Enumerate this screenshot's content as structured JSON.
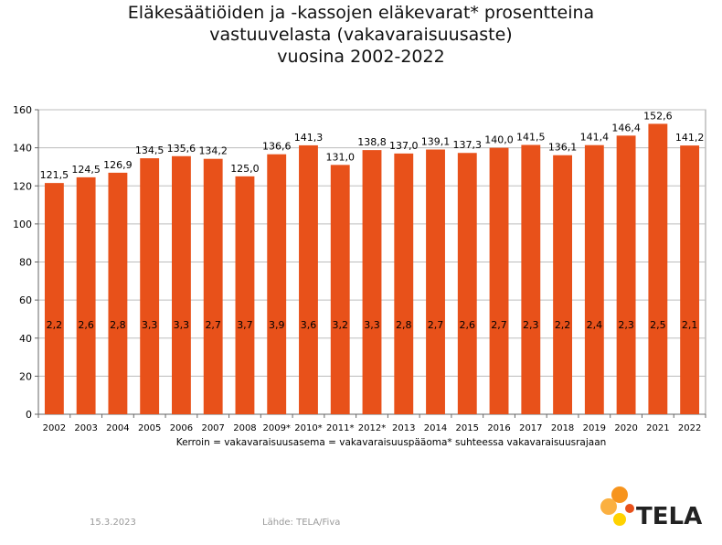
{
  "chart_data": {
    "type": "bar",
    "title_lines": [
      "Eläkesäätiöiden ja -kassojen eläkevarat* prosentteina",
      "vastuuvelasta (vakavaraisuusaste)",
      "vuosina 2002-2022"
    ],
    "categories": [
      "2002",
      "2003",
      "2004",
      "2005",
      "2006",
      "2007",
      "2008",
      "2009*",
      "2010*",
      "2011*",
      "2012*",
      "2013",
      "2014",
      "2015",
      "2016",
      "2017",
      "2018",
      "2019",
      "2020",
      "2021",
      "2022"
    ],
    "values": [
      121.5,
      124.5,
      126.9,
      134.5,
      135.6,
      134.2,
      125.0,
      136.6,
      141.3,
      131.0,
      138.8,
      137.0,
      139.1,
      137.3,
      140.0,
      141.5,
      136.1,
      141.4,
      146.4,
      152.6,
      141.2
    ],
    "value_labels": [
      "121,5",
      "124,5",
      "126,9",
      "134,5",
      "135,6",
      "134,2",
      "125,0",
      "136,6",
      "141,3",
      "131,0",
      "138,8",
      "137,0",
      "139,1",
      "137,3",
      "140,0",
      "141,5",
      "136,1",
      "141,4",
      "146,4",
      "152,6",
      "141,2"
    ],
    "inner_labels": [
      "2,2",
      "2,6",
      "2,8",
      "3,3",
      "3,3",
      "2,7",
      "3,7",
      "3,9",
      "3,6",
      "3,2",
      "3,3",
      "2,8",
      "2,7",
      "2,6",
      "2,7",
      "2,3",
      "2,2",
      "2,4",
      "2,3",
      "2,5",
      "2,1"
    ],
    "ylim": [
      0,
      160
    ],
    "yticks": [
      "0",
      "20",
      "40",
      "60",
      "80",
      "100",
      "120",
      "140",
      "160"
    ],
    "grid": true,
    "bar_color": "#E8511A",
    "subtitle": "Kerroin = vakavaraisuusasema = vakavaraisuuspääoma* suhteessa vakavaraisuusrajaan"
  },
  "footer": {
    "date": "15.3.2023",
    "source": "Lähde: TELA/Fiva"
  },
  "logo": {
    "text": "TELA",
    "colors": [
      "#F7941D",
      "#FBB040",
      "#E8511A",
      "#FFD200"
    ]
  }
}
